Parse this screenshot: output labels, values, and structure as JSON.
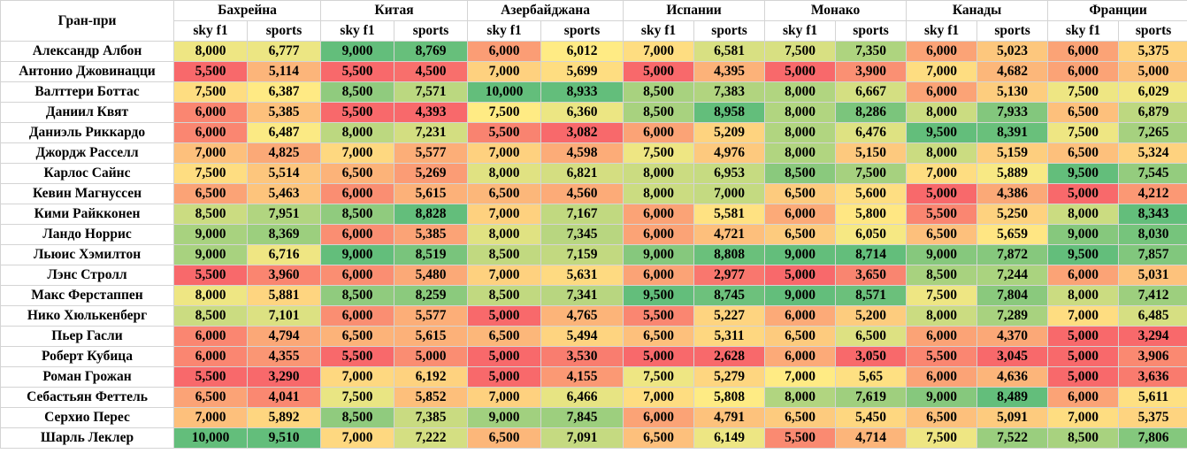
{
  "header": {
    "corner": "Гран-при",
    "races": [
      "Бахрейна",
      "Китая",
      "Азербайджана",
      "Испании",
      "Монако",
      "Канады",
      "Франции"
    ],
    "sub_labels": [
      "sky f1",
      "sports"
    ]
  },
  "rows": [
    {
      "name": "Александр Албон",
      "values": [
        "8,000",
        "6,777",
        "9,000",
        "8,769",
        "6,000",
        "6,012",
        "7,000",
        "6,581",
        "7,500",
        "7,350",
        "6,000",
        "5,023",
        "6,000",
        "5,375"
      ]
    },
    {
      "name": "Антонио Джовинацци",
      "values": [
        "5,500",
        "5,114",
        "5,500",
        "4,500",
        "7,000",
        "5,699",
        "5,000",
        "4,395",
        "5,000",
        "3,900",
        "7,000",
        "4,682",
        "6,000",
        "5,000"
      ]
    },
    {
      "name": "Валттери Боттас",
      "values": [
        "7,500",
        "6,387",
        "8,500",
        "7,571",
        "10,000",
        "8,933",
        "8,500",
        "7,383",
        "8,000",
        "6,667",
        "6,000",
        "5,130",
        "7,500",
        "6,029"
      ]
    },
    {
      "name": "Даниил Квят",
      "values": [
        "6,000",
        "5,385",
        "5,500",
        "4,393",
        "7,500",
        "6,360",
        "8,500",
        "8,958",
        "8,000",
        "8,286",
        "8,000",
        "7,933",
        "6,500",
        "6,879"
      ]
    },
    {
      "name": "Даниэль Риккардо",
      "values": [
        "6,000",
        "6,487",
        "8,000",
        "7,231",
        "5,500",
        "3,082",
        "6,000",
        "5,209",
        "8,000",
        "6,476",
        "9,500",
        "8,391",
        "7,500",
        "7,265"
      ]
    },
    {
      "name": "Джордж Расселл",
      "values": [
        "7,000",
        "4,825",
        "7,000",
        "5,577",
        "7,000",
        "4,598",
        "7,500",
        "4,976",
        "8,000",
        "5,150",
        "8,000",
        "5,159",
        "6,500",
        "5,324"
      ]
    },
    {
      "name": "Карлос Сайнс",
      "values": [
        "7,500",
        "5,514",
        "6,500",
        "5,269",
        "8,000",
        "6,821",
        "8,000",
        "6,953",
        "8,500",
        "7,500",
        "7,000",
        "5,889",
        "9,500",
        "7,545"
      ]
    },
    {
      "name": "Кевин Магнуссен",
      "values": [
        "6,500",
        "5,463",
        "6,000",
        "5,615",
        "6,500",
        "4,560",
        "8,000",
        "7,000",
        "6,500",
        "5,600",
        "5,000",
        "4,386",
        "5,000",
        "4,212"
      ]
    },
    {
      "name": "Кими Райкконен",
      "values": [
        "8,500",
        "7,951",
        "8,500",
        "8,828",
        "7,000",
        "7,167",
        "6,000",
        "5,581",
        "6,000",
        "5,800",
        "5,500",
        "5,250",
        "8,000",
        "8,343"
      ]
    },
    {
      "name": "Ландо Норрис",
      "values": [
        "9,000",
        "8,369",
        "6,000",
        "5,385",
        "8,000",
        "7,345",
        "6,000",
        "4,721",
        "6,500",
        "6,050",
        "6,500",
        "5,659",
        "9,000",
        "8,030"
      ]
    },
    {
      "name": "Льюис Хэмилтон",
      "values": [
        "9,000",
        "6,716",
        "9,000",
        "8,519",
        "8,500",
        "7,159",
        "9,000",
        "8,808",
        "9,000",
        "8,714",
        "9,000",
        "7,872",
        "9,500",
        "7,857"
      ]
    },
    {
      "name": "Лэнс Стролл",
      "values": [
        "5,500",
        "3,960",
        "6,000",
        "5,480",
        "7,000",
        "5,631",
        "6,000",
        "2,977",
        "5,000",
        "3,650",
        "8,500",
        "7,244",
        "6,000",
        "5,031"
      ]
    },
    {
      "name": "Макс Ферстаппен",
      "values": [
        "8,000",
        "5,881",
        "8,500",
        "8,259",
        "8,500",
        "7,341",
        "9,500",
        "8,745",
        "9,000",
        "8,571",
        "7,500",
        "7,804",
        "8,000",
        "7,412"
      ]
    },
    {
      "name": "Нико Хюлькенберг",
      "values": [
        "8,500",
        "7,101",
        "6,000",
        "5,577",
        "5,000",
        "4,765",
        "5,500",
        "5,227",
        "6,000",
        "5,200",
        "8,000",
        "7,289",
        "7,000",
        "6,485"
      ]
    },
    {
      "name": "Пьер Гасли",
      "values": [
        "6,000",
        "4,794",
        "6,500",
        "5,615",
        "6,500",
        "5,494",
        "6,500",
        "5,311",
        "6,500",
        "6,500",
        "6,000",
        "4,370",
        "5,000",
        "3,294"
      ]
    },
    {
      "name": "Роберт Кубица",
      "values": [
        "6,000",
        "4,355",
        "5,500",
        "5,000",
        "5,000",
        "3,530",
        "5,000",
        "2,628",
        "6,000",
        "3,050",
        "5,500",
        "3,045",
        "5,000",
        "3,906"
      ]
    },
    {
      "name": "Роман Грожан",
      "values": [
        "5,500",
        "3,290",
        "7,000",
        "6,192",
        "5,000",
        "4,155",
        "7,500",
        "5,279",
        "7,000",
        "5,65",
        "6,000",
        "4,636",
        "5,000",
        "3,636"
      ]
    },
    {
      "name": "Себастьян Феттель",
      "values": [
        "6,500",
        "4,041",
        "7,500",
        "5,852",
        "7,000",
        "6,466",
        "7,000",
        "5,808",
        "8,000",
        "7,619",
        "9,000",
        "8,489",
        "6,000",
        "5,611"
      ]
    },
    {
      "name": "Серхио Перес",
      "values": [
        "7,000",
        "5,892",
        "8,500",
        "7,385",
        "9,000",
        "7,845",
        "6,000",
        "4,791",
        "6,500",
        "5,450",
        "6,500",
        "5,091",
        "7,000",
        "5,375"
      ]
    },
    {
      "name": "Шарль Леклер",
      "values": [
        "10,000",
        "9,510",
        "7,000",
        "7,222",
        "6,500",
        "7,091",
        "6,500",
        "6,149",
        "5,500",
        "4,714",
        "7,500",
        "7,522",
        "8,500",
        "7,806"
      ]
    }
  ],
  "color_scale": {
    "low": "#f8696b",
    "mid": "#ffeb84",
    "high": "#63be7b"
  }
}
